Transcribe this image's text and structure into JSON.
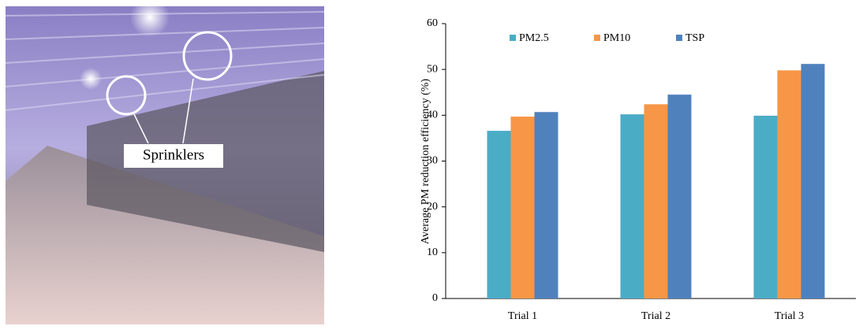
{
  "photo": {
    "label": "Sprinklers"
  },
  "chart_data": {
    "type": "bar",
    "y_label": "Average PM reduction efficiency (%)",
    "categories": [
      "Trial 1",
      "Trial 2",
      "Trial 3"
    ],
    "series": [
      {
        "name": "PM2.5",
        "color": "#4bacc6",
        "values": [
          36.6,
          40.2,
          39.9
        ]
      },
      {
        "name": "PM10",
        "color": "#f79646",
        "values": [
          39.7,
          42.4,
          49.8
        ]
      },
      {
        "name": "TSP",
        "color": "#4f81bd",
        "values": [
          40.7,
          44.5,
          51.2
        ]
      }
    ],
    "ylim": [
      0,
      60
    ],
    "yticks": [
      0,
      10,
      20,
      30,
      40,
      50,
      60
    ],
    "grid": false,
    "legend": "top-left"
  }
}
